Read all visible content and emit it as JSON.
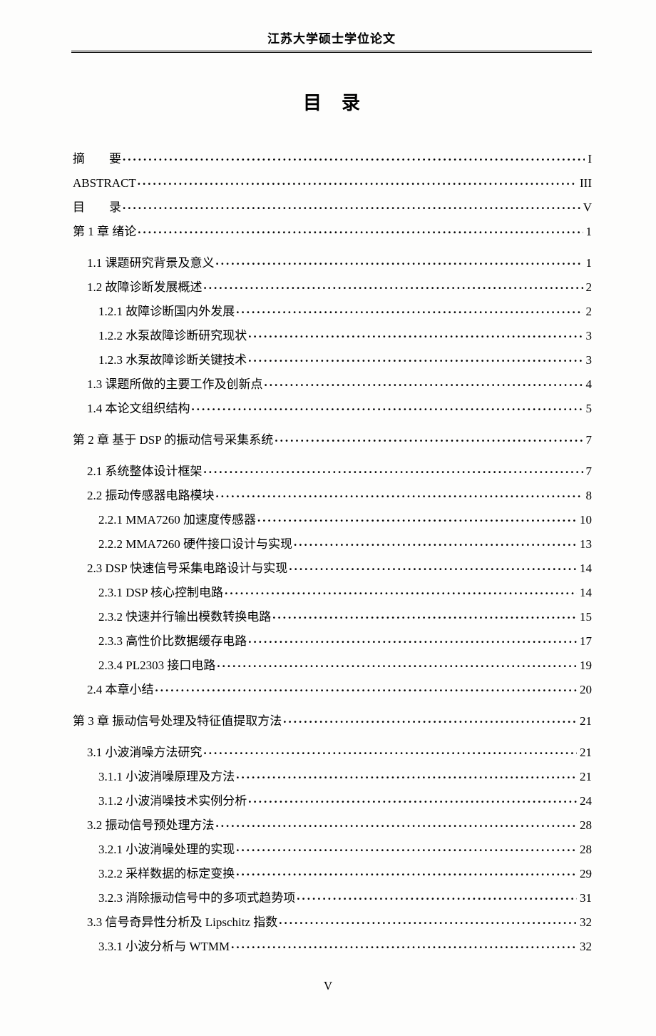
{
  "header": "江苏大学硕士学位论文",
  "title": "目录",
  "footer": "V",
  "entries": [
    {
      "level": 0,
      "label": "摘　　要",
      "page": "I",
      "spaced": false
    },
    {
      "level": 0,
      "label": "ABSTRACT",
      "page": "III"
    },
    {
      "level": 0,
      "label": "目　　录",
      "page": "V",
      "spaced": false
    },
    {
      "level": 0,
      "label": "第 1 章 绪论",
      "page": "1"
    },
    {
      "level": 1,
      "label": "1.1 课题研究背景及意义",
      "page": "1",
      "gap": true
    },
    {
      "level": 1,
      "label": "1.2 故障诊断发展概述",
      "page": "2"
    },
    {
      "level": 2,
      "label": "1.2.1 故障诊断国内外发展",
      "page": "2"
    },
    {
      "level": 2,
      "label": "1.2.2 水泵故障诊断研究现状",
      "page": "3"
    },
    {
      "level": 2,
      "label": "1.2.3 水泵故障诊断关键技术",
      "page": "3"
    },
    {
      "level": 1,
      "label": "1.3 课题所做的主要工作及创新点",
      "page": "4"
    },
    {
      "level": 1,
      "label": "1.4 本论文组织结构",
      "page": "5"
    },
    {
      "level": 0,
      "label": "第 2 章 基于 DSP 的振动信号采集系统",
      "page": "7",
      "gap": true
    },
    {
      "level": 1,
      "label": "2.1 系统整体设计框架",
      "page": "7",
      "gap": true
    },
    {
      "level": 1,
      "label": "2.2 振动传感器电路模块",
      "page": "8"
    },
    {
      "level": 2,
      "label": "2.2.1 MMA7260 加速度传感器",
      "page": "10"
    },
    {
      "level": 2,
      "label": "2.2.2 MMA7260 硬件接口设计与实现",
      "page": "13"
    },
    {
      "level": 1,
      "label": "2.3 DSP 快速信号采集电路设计与实现",
      "page": "14"
    },
    {
      "level": 2,
      "label": "2.3.1 DSP 核心控制电路",
      "page": "14"
    },
    {
      "level": 2,
      "label": "2.3.2 快速并行输出模数转换电路",
      "page": "15"
    },
    {
      "level": 2,
      "label": "2.3.3 高性价比数据缓存电路",
      "page": "17"
    },
    {
      "level": 2,
      "label": "2.3.4 PL2303 接口电路",
      "page": "19"
    },
    {
      "level": 1,
      "label": "2.4 本章小结",
      "page": "20"
    },
    {
      "level": 0,
      "label": "第 3 章 振动信号处理及特征值提取方法",
      "page": "21",
      "gap": true
    },
    {
      "level": 1,
      "label": "3.1 小波消噪方法研究",
      "page": "21",
      "gap": true
    },
    {
      "level": 2,
      "label": "3.1.1 小波消噪原理及方法",
      "page": "21"
    },
    {
      "level": 2,
      "label": "3.1.2 小波消噪技术实例分析",
      "page": "24"
    },
    {
      "level": 1,
      "label": "3.2 振动信号预处理方法",
      "page": "28"
    },
    {
      "level": 2,
      "label": "3.2.1 小波消噪处理的实现",
      "page": "28"
    },
    {
      "level": 2,
      "label": "3.2.2 采样数据的标定变换",
      "page": "29"
    },
    {
      "level": 2,
      "label": "3.2.3 消除振动信号中的多项式趋势项",
      "page": "31"
    },
    {
      "level": 1,
      "label": "3.3 信号奇异性分析及 Lipschitz 指数",
      "page": "32"
    },
    {
      "level": 2,
      "label": "3.3.1 小波分析与 WTMM",
      "page": "32"
    }
  ]
}
